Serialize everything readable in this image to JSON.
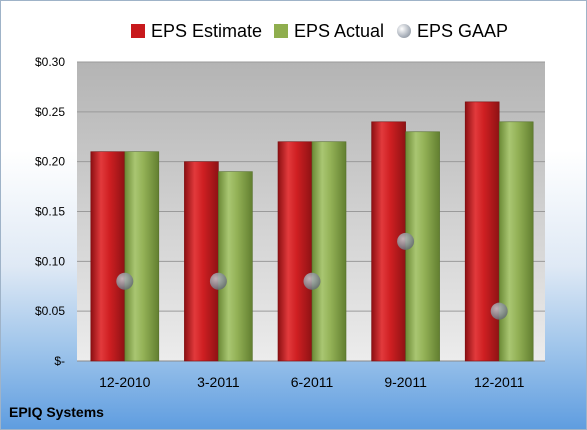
{
  "title": "EPIQ Systems",
  "legend": [
    "EPS Estimate",
    "EPS Actual",
    "EPS GAAP"
  ],
  "colors": {
    "estimate": "#c8191c",
    "actual": "#8fae4e",
    "gaap": "#8d949c"
  },
  "chart_data": {
    "type": "bar",
    "title": "EPIQ Systems",
    "categories": [
      "12-2010",
      "3-2011",
      "6-2011",
      "9-2011",
      "12-2011"
    ],
    "series": [
      {
        "name": "EPS Estimate",
        "values": [
          0.21,
          0.2,
          0.22,
          0.24,
          0.26
        ]
      },
      {
        "name": "EPS Actual",
        "values": [
          0.21,
          0.19,
          0.22,
          0.23,
          0.24
        ]
      },
      {
        "name": "EPS GAAP",
        "values": [
          0.08,
          0.08,
          0.08,
          0.12,
          0.05
        ]
      }
    ],
    "ylim": [
      0,
      0.3
    ],
    "y_ticks": [
      0,
      0.05,
      0.1,
      0.15,
      0.2,
      0.25,
      0.3
    ],
    "y_tick_labels": [
      "$-",
      "$0.05",
      "$0.10",
      "$0.15",
      "$0.20",
      "$0.25",
      "$0.30"
    ],
    "grid": true,
    "legend_position": "top"
  }
}
